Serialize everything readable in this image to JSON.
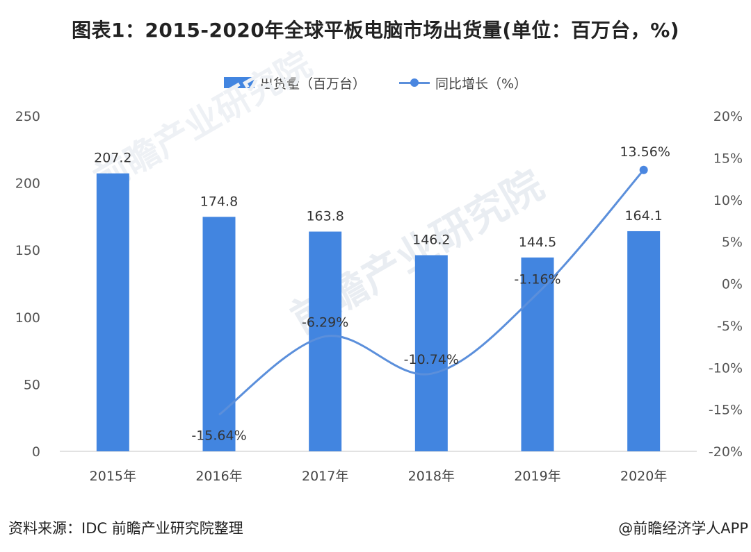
{
  "title": "图表1：2015-2020年全球平板电脑市场出货量(单位：百万台，%)",
  "source": "资料来源：IDC 前瞻产业研究院整理",
  "credit": "@前瞻经济学人APP",
  "watermark": "前瞻产业研究院",
  "colors": {
    "bar": "#4285e0",
    "line": "#5b8fdb",
    "marker": "#4a86e0"
  },
  "chart_data": {
    "type": "bar",
    "categories": [
      "2015年",
      "2016年",
      "2017年",
      "2018年",
      "2019年",
      "2020年"
    ],
    "series": [
      {
        "name": "出货量（百万台）",
        "type": "bar",
        "axis": "left",
        "values": [
          207.2,
          174.8,
          163.8,
          146.2,
          144.5,
          164.1
        ],
        "labels": [
          "207.2",
          "174.8",
          "163.8",
          "146.2",
          "144.5",
          "164.1"
        ]
      },
      {
        "name": "同比增长（%）",
        "type": "line",
        "axis": "right",
        "values": [
          null,
          -15.64,
          -6.29,
          -10.74,
          -1.16,
          13.56
        ],
        "labels": [
          "",
          "-15.64%",
          "-6.29%",
          "-10.74%",
          "-1.16%",
          "13.56%"
        ]
      }
    ],
    "y_left": {
      "min": 0,
      "max": 250,
      "ticks": [
        0,
        50,
        100,
        150,
        200,
        250
      ],
      "tick_labels": [
        "0",
        "50",
        "100",
        "150",
        "200",
        "250"
      ]
    },
    "y_right": {
      "min": -20,
      "max": 20,
      "ticks": [
        -20,
        -15,
        -10,
        -5,
        0,
        5,
        10,
        15,
        20
      ],
      "tick_labels": [
        "-20%",
        "-15%",
        "-10%",
        "-5%",
        "0%",
        "5%",
        "10%",
        "15%",
        "20%"
      ]
    },
    "legend_position": "top-center",
    "grid": false
  }
}
